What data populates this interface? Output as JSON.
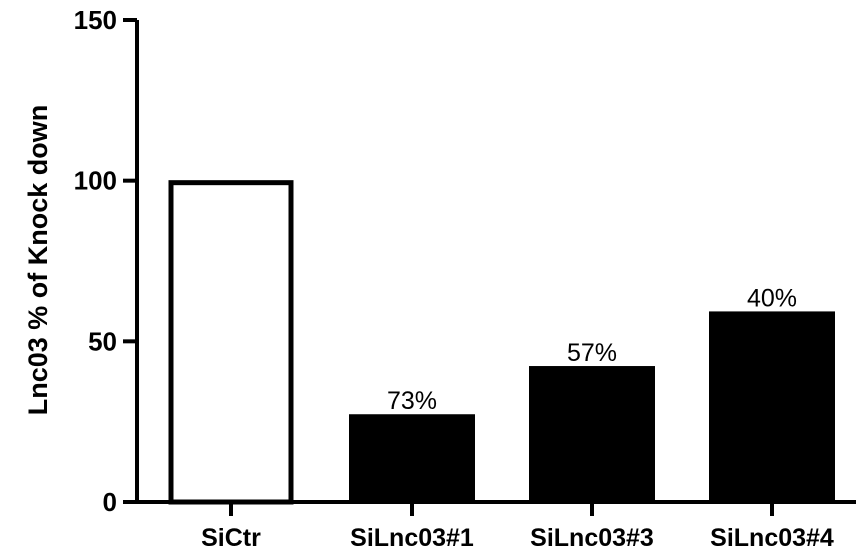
{
  "chart_data": {
    "type": "bar",
    "categories": [
      "SiCtr",
      "SiLnc03#1",
      "SiLnc03#3",
      "SiLnc03#4"
    ],
    "values": [
      100,
      27,
      42,
      59
    ],
    "data_labels": [
      "",
      "73%",
      "57%",
      "40%"
    ],
    "bar_fill": [
      "#ffffff",
      "#000000",
      "#000000",
      "#000000"
    ],
    "bar_stroke": "#000000",
    "title": "",
    "xlabel": "",
    "ylabel": "Lnc03 % of Knock down",
    "ylim": [
      0,
      150
    ],
    "yticks": [
      0,
      50,
      100,
      150
    ],
    "grid": false,
    "legend": "none"
  }
}
